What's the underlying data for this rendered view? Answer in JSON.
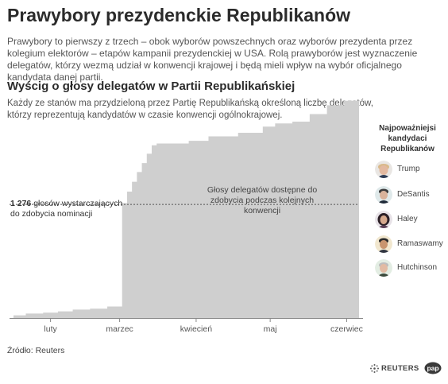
{
  "title": "Prawybory prezydenckie Republikanów",
  "intro": "Prawybory to pierwszy z trzech – obok wyborów powszechnych oraz wyborów prezydenta przez kolegium elektorów – etapów kampanii prezydenckiej w USA. Rolą prawyborów jest wyznaczenie delegatów, którzy wezmą udział w konwencji krajowej i będą mieli wpływ na wybór oficjalnego kandydata danej partii.",
  "subtitle": "Wyścig o głosy delegatów w Partii Republikańskiej",
  "description": "Każdy ze stanów ma przydzieloną przez Partię Republikańską określoną liczbę delegatów, którzy reprezentują kandydatów w czasie konwencji ogólnokrajowej.",
  "threshold": {
    "value": "1 276",
    "label_rest": " głosów wystarczających",
    "label_line2": "do zdobycia nominacji"
  },
  "area_label": "Głosy delegatów dostępne do zdobycia podczas kolejnych konwencji",
  "legend": {
    "title": "Najpoważniejsi kandydaci Republikanów",
    "items": [
      {
        "name": "Trump",
        "icon": "trump-avatar-icon",
        "color": "#c9a98f"
      },
      {
        "name": "DeSantis",
        "icon": "desantis-avatar-icon",
        "color": "#3a7a87"
      },
      {
        "name": "Haley",
        "icon": "haley-avatar-icon",
        "color": "#5a3f57"
      },
      {
        "name": "Ramaswamy",
        "icon": "ramaswamy-avatar-icon",
        "color": "#c9a24a"
      },
      {
        "name": "Hutchinson",
        "icon": "hutchinson-avatar-icon",
        "color": "#8ab08a"
      }
    ]
  },
  "source": "Źródło: Reuters",
  "credits": {
    "reuters": "REUTERS",
    "pap": "pap"
  },
  "chart_data": {
    "type": "area",
    "x_ticks": [
      "luty",
      "marzec",
      "kwiecień",
      "maj",
      "czerwiec"
    ],
    "x_tick_days": [
      15,
      43,
      74,
      104,
      135
    ],
    "x_range_days": [
      0,
      140
    ],
    "ylim": [
      0,
      2500
    ],
    "threshold": 1276,
    "series": [
      {
        "steps": [
          [
            0,
            30
          ],
          [
            5,
            50
          ],
          [
            12,
            60
          ],
          [
            18,
            75
          ],
          [
            24,
            95
          ],
          [
            31,
            105
          ],
          [
            38,
            130
          ],
          [
            44,
            1290
          ],
          [
            46,
            1420
          ],
          [
            48,
            1530
          ],
          [
            50,
            1640
          ],
          [
            52,
            1740
          ],
          [
            54,
            1845
          ],
          [
            56,
            1940
          ],
          [
            58,
            1960
          ],
          [
            71,
            1990
          ],
          [
            79,
            2040
          ],
          [
            91,
            2080
          ],
          [
            101,
            2150
          ],
          [
            106,
            2185
          ],
          [
            113,
            2205
          ],
          [
            120,
            2290
          ],
          [
            127,
            2390
          ],
          [
            134,
            2440
          ],
          [
            140,
            2440
          ]
        ]
      }
    ],
    "colors": {
      "area": "#cfcfcf",
      "threshold": "#555555",
      "axis": "#888888"
    },
    "grid": false
  }
}
